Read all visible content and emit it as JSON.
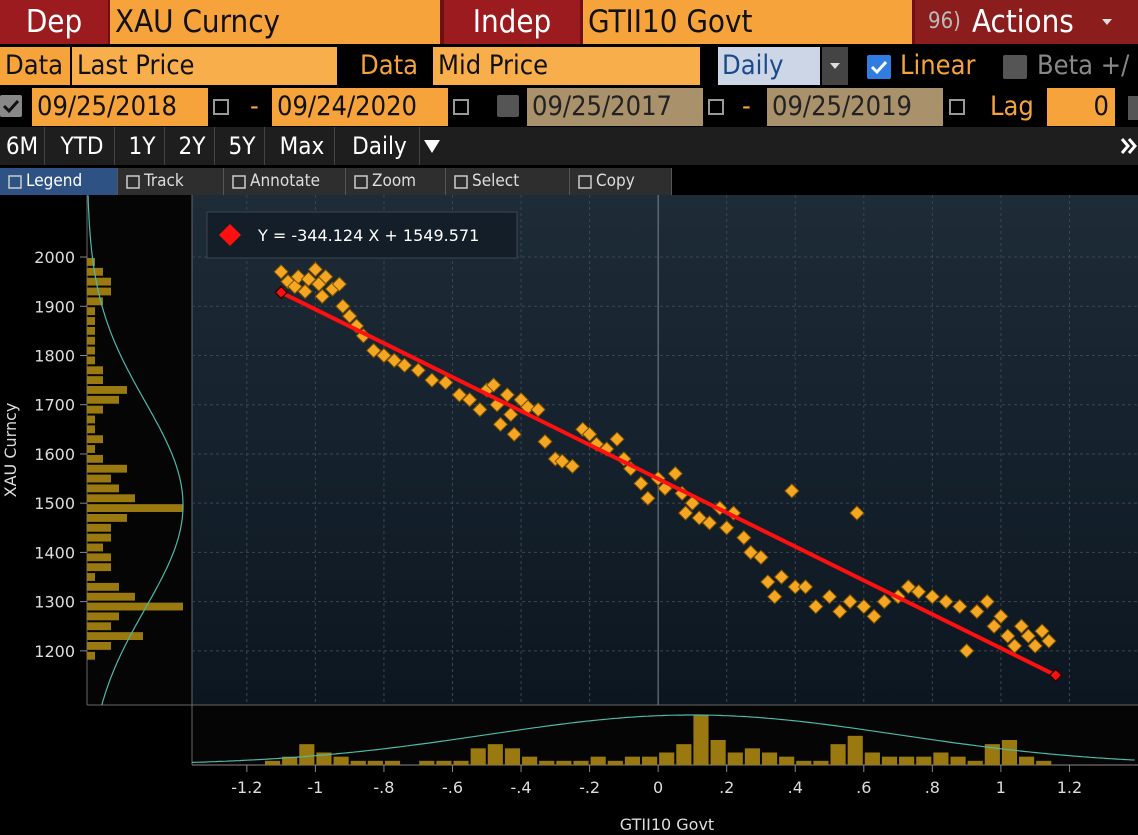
{
  "header": {
    "dep_label": "Dep",
    "dep_value": "XAU Curncy",
    "indep_label": "Indep",
    "indep_value": "GTII10 Govt",
    "actions_code": "96)",
    "actions_label": "Actions"
  },
  "data_row": {
    "dep_label": "Data",
    "dep_value": "Last Price",
    "indep_label": "Data",
    "indep_value": "Mid Price",
    "frequency": "Daily",
    "linear": "Linear",
    "beta": "Beta +/"
  },
  "date_row": {
    "start1": "09/25/2018",
    "dash1": "-",
    "end1": "09/24/2020",
    "start2": "09/25/2017",
    "dash2": "-",
    "end2": "09/25/2019",
    "lag_label": "Lag",
    "lag_value": "0"
  },
  "periods": [
    "6M",
    "YTD",
    "1Y",
    "2Y",
    "5Y",
    "Max",
    "Daily"
  ],
  "toolbar": [
    "Legend",
    "Track",
    "Annotate",
    "Zoom",
    "Select",
    "Copy"
  ],
  "chart_data": {
    "type": "scatter",
    "x_label": "GTII10 Govt",
    "y_label": "XAU Curncy",
    "legend_label": "Y = -344.124 X + 1549.571",
    "color": "#f5a623",
    "fit_color": "#ff1010",
    "grid": true,
    "xlim": [
      -1.36,
      1.4
    ],
    "ylim": [
      1090,
      2126
    ],
    "xticks": [
      -1.2,
      -1,
      {
        "value": -0.8,
        "label": "-.8"
      },
      {
        "value": -0.6,
        "label": "-.6"
      },
      {
        "value": -0.4,
        "label": "-.4"
      },
      {
        "value": -0.2,
        "label": "-.2"
      },
      0,
      {
        "value": 0.2,
        "label": ".2"
      },
      {
        "value": 0.4,
        "label": ".4"
      },
      {
        "value": 0.6,
        "label": ".6"
      },
      {
        "value": 0.8,
        "label": ".8"
      },
      1,
      1.2
    ],
    "yticks": [
      1200,
      1300,
      1400,
      1500,
      1600,
      1700,
      1800,
      1900,
      2000
    ],
    "x": [
      -1.1,
      -1.08,
      -1.06,
      -1.05,
      -1.03,
      -1.02,
      -1.0,
      -0.99,
      -0.98,
      -0.97,
      -0.95,
      -0.93,
      -0.92,
      -0.9,
      -0.88,
      -0.86,
      -0.83,
      -0.8,
      -0.77,
      -0.74,
      -0.7,
      -0.66,
      -0.62,
      -0.58,
      -0.55,
      -0.52,
      -0.5,
      -0.48,
      -0.47,
      -0.46,
      -0.44,
      -0.43,
      -0.42,
      -0.4,
      -0.38,
      -0.35,
      -0.33,
      -0.3,
      -0.28,
      -0.25,
      -0.22,
      -0.2,
      -0.18,
      -0.15,
      -0.12,
      -0.1,
      -0.08,
      -0.05,
      -0.03,
      0,
      0.02,
      0.05,
      0.07,
      0.08,
      0.1,
      0.12,
      0.15,
      0.18,
      0.2,
      0.22,
      0.25,
      0.27,
      0.3,
      0.32,
      0.34,
      0.36,
      0.39,
      0.4,
      0.43,
      0.46,
      0.5,
      0.53,
      0.56,
      0.58,
      0.6,
      0.63,
      0.66,
      0.7,
      0.73,
      0.76,
      0.8,
      0.84,
      0.88,
      0.9,
      0.93,
      0.96,
      0.98,
      1.0,
      1.02,
      1.04,
      1.06,
      1.08,
      1.1,
      1.12,
      1.14
    ],
    "values": [
      1970,
      1950,
      1940,
      1960,
      1930,
      1955,
      1975,
      1945,
      1920,
      1960,
      1935,
      1945,
      1900,
      1880,
      1860,
      1840,
      1810,
      1800,
      1790,
      1780,
      1770,
      1750,
      1745,
      1720,
      1710,
      1690,
      1730,
      1740,
      1700,
      1660,
      1720,
      1680,
      1640,
      1710,
      1695,
      1690,
      1625,
      1590,
      1585,
      1575,
      1650,
      1640,
      1620,
      1610,
      1630,
      1590,
      1570,
      1540,
      1510,
      1550,
      1530,
      1560,
      1520,
      1480,
      1500,
      1470,
      1460,
      1490,
      1450,
      1480,
      1430,
      1400,
      1390,
      1340,
      1310,
      1350,
      1525,
      1330,
      1330,
      1290,
      1310,
      1280,
      1300,
      1480,
      1290,
      1270,
      1300,
      1310,
      1330,
      1320,
      1310,
      1300,
      1290,
      1200,
      1280,
      1300,
      1250,
      1270,
      1230,
      1210,
      1250,
      1230,
      1210,
      1240,
      1220
    ],
    "fit": {
      "slope": -344.124,
      "intercept": 1549.571,
      "x": [
        -1.1,
        1.16
      ]
    },
    "y_hist": {
      "bins": [
        1180,
        1200,
        1220,
        1240,
        1260,
        1280,
        1300,
        1320,
        1340,
        1360,
        1380,
        1400,
        1420,
        1440,
        1460,
        1480,
        1500,
        1520,
        1540,
        1560,
        1580,
        1600,
        1620,
        1640,
        1660,
        1680,
        1700,
        1720,
        1740,
        1760,
        1780,
        1800,
        1820,
        1840,
        1860,
        1880,
        1900,
        1920,
        1940,
        1960,
        1980,
        2000
      ],
      "counts": [
        1,
        3,
        7,
        3,
        4,
        12,
        6,
        4,
        1,
        3,
        3,
        2,
        3,
        3,
        5,
        12,
        6,
        4,
        3,
        5,
        2,
        1,
        2,
        1,
        1,
        2,
        4,
        5,
        2,
        2,
        1,
        1,
        1,
        1,
        1,
        1,
        2,
        3,
        3,
        2,
        1
      ],
      "curve": {
        "mean": 1496,
        "sd": 210,
        "peak": 12
      }
    },
    "x_hist": {
      "bins": [
        -1.15,
        -1.1,
        -1.05,
        -1.0,
        -0.95,
        -0.9,
        -0.85,
        -0.8,
        -0.75,
        -0.7,
        -0.65,
        -0.6,
        -0.55,
        -0.5,
        -0.45,
        -0.4,
        -0.35,
        -0.3,
        -0.25,
        -0.2,
        -0.15,
        -0.1,
        -0.05,
        0,
        0.05,
        0.1,
        0.15,
        0.2,
        0.25,
        0.3,
        0.35,
        0.4,
        0.45,
        0.5,
        0.55,
        0.6,
        0.65,
        0.7,
        0.75,
        0.8,
        0.85,
        0.9,
        0.95,
        1.0,
        1.05,
        1.1,
        1.15
      ],
      "counts": [
        1,
        2,
        5,
        3,
        2,
        1,
        1,
        1,
        0,
        1,
        1,
        1,
        4,
        5,
        4,
        2,
        1,
        1,
        1,
        2,
        1,
        2,
        2,
        3,
        5,
        12,
        6,
        3,
        4,
        3,
        2,
        1,
        1,
        5,
        7,
        3,
        2,
        2,
        2,
        3,
        2,
        1,
        5,
        6,
        2,
        1
      ],
      "curve": {
        "mean": 0.1,
        "sd": 0.6,
        "peak": 12
      }
    }
  }
}
